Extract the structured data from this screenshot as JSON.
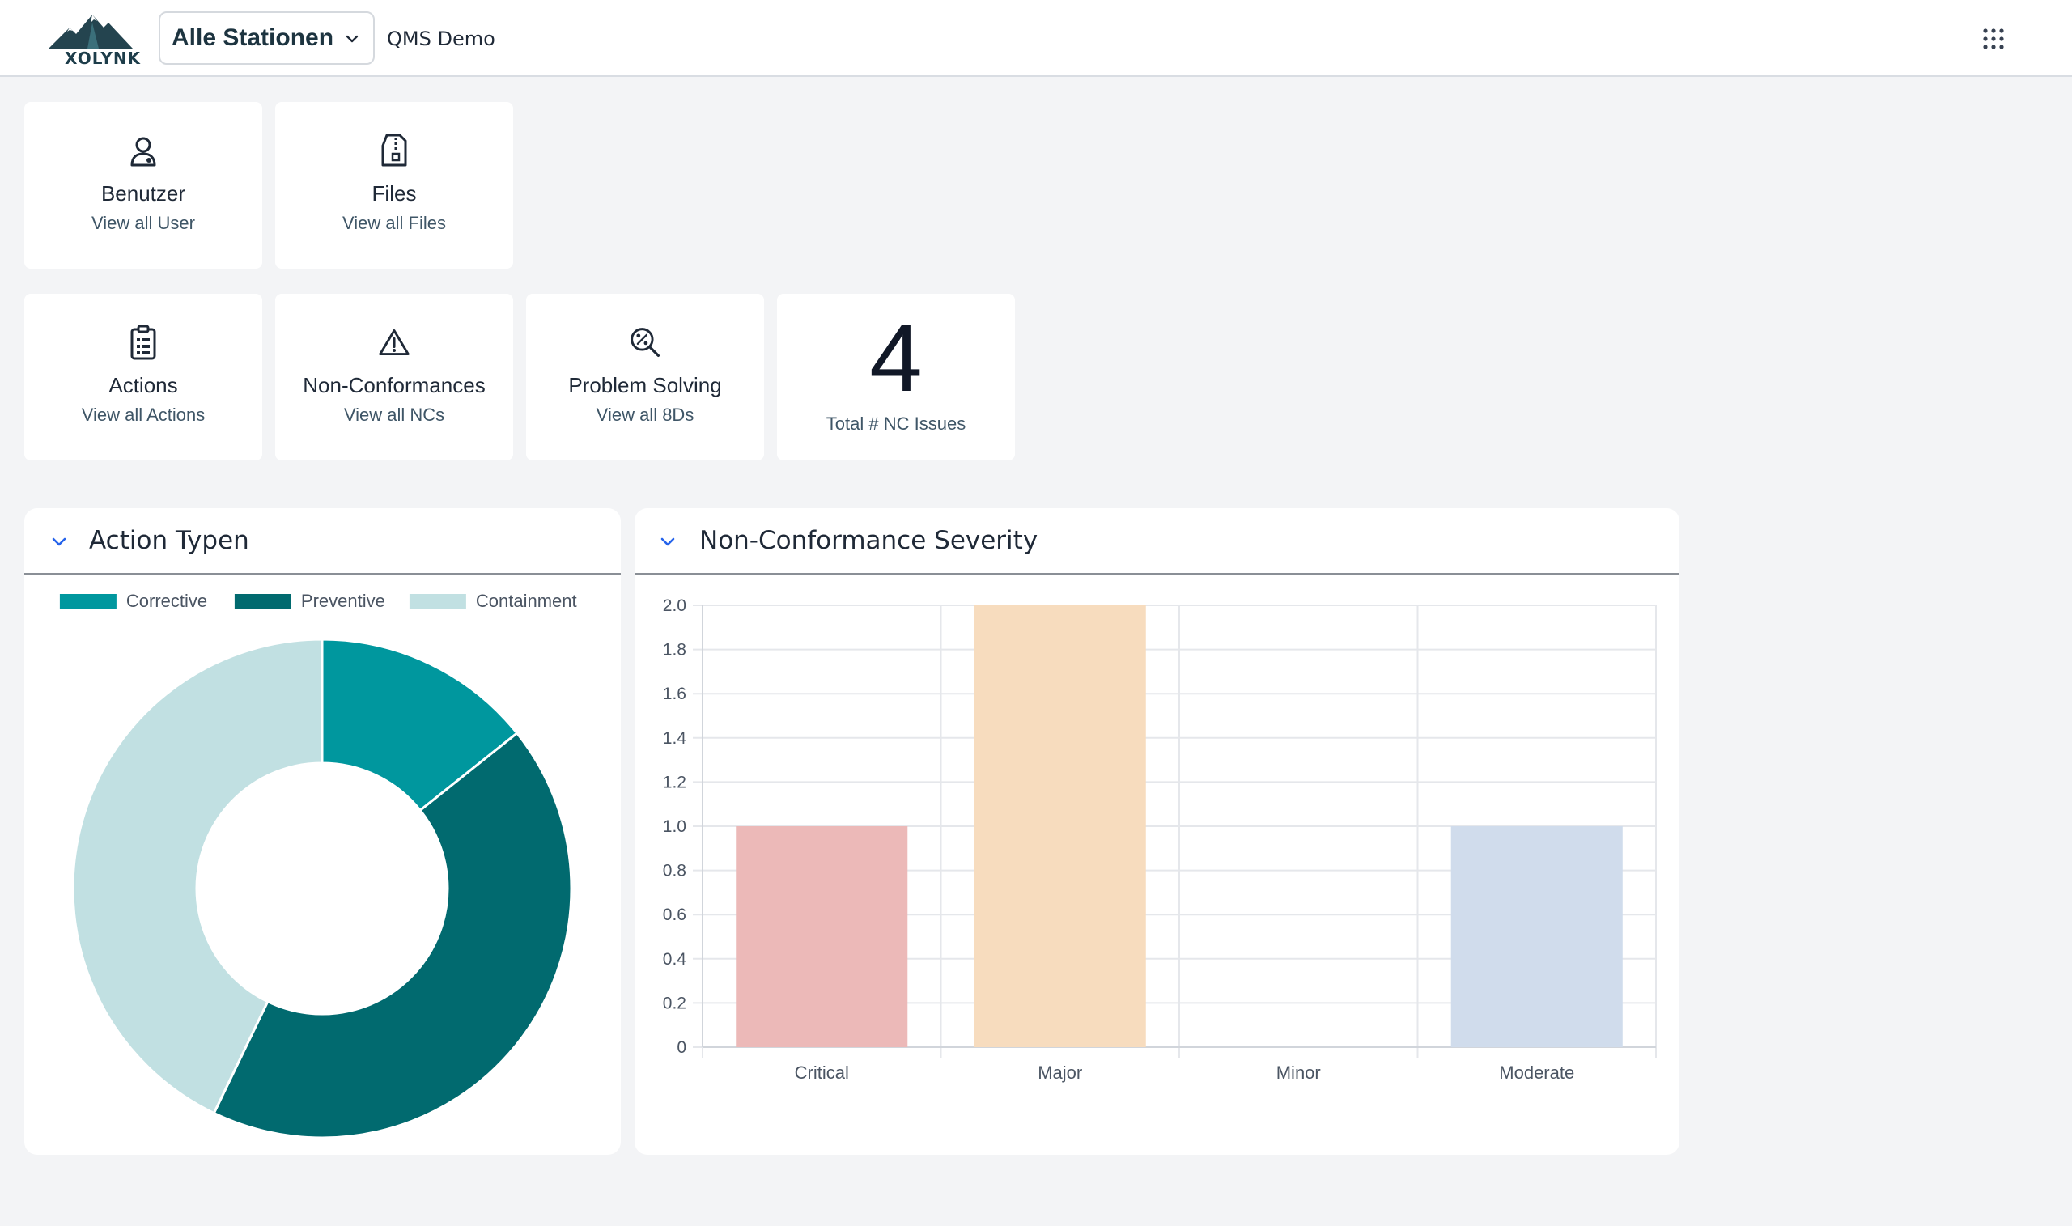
{
  "header": {
    "logo_text": "XOLYNK",
    "station_selector": "Alle Stationen",
    "org_name": "QMS Demo",
    "icons": {
      "dropdown": "chevron-down-icon",
      "apps": "grid-menu-icon"
    }
  },
  "tiles": [
    {
      "title": "Benutzer",
      "subtitle": "View all User",
      "icon": "user-icon"
    },
    {
      "title": "Files",
      "subtitle": "View all Files",
      "icon": "file-icon"
    },
    {
      "title": "Actions",
      "subtitle": "View all Actions",
      "icon": "clipboard-icon"
    },
    {
      "title": "Non-Conformances",
      "subtitle": "View all NCs",
      "icon": "warning-icon"
    },
    {
      "title": "Problem Solving",
      "subtitle": "View all 8Ds",
      "icon": "percent-search-icon"
    }
  ],
  "kpi": {
    "value": "4",
    "label": "Total # NC Issues"
  },
  "cards": {
    "action_types": {
      "title": "Action Typen"
    },
    "nc_severity": {
      "title": "Non-Conformance Severity"
    }
  },
  "colors": {
    "corrective": "#00979e",
    "preventive": "#016a6f",
    "containment": "#c1e0e2",
    "critical": "#ecb9b8",
    "major": "#f7dcbe",
    "minor": "#cfe8e6",
    "moderate": "#d0dcec"
  },
  "chart_data": [
    {
      "type": "pie",
      "title": "",
      "legend_position": "top",
      "categories": [
        "Corrective",
        "Preventive",
        "Containment"
      ],
      "values": [
        1,
        3,
        3
      ]
    },
    {
      "type": "bar",
      "title": "",
      "categories": [
        "Critical",
        "Major",
        "Minor",
        "Moderate"
      ],
      "values": [
        1,
        2,
        0,
        1
      ],
      "ylim": [
        0,
        2
      ],
      "yticks": [
        "0",
        "0.2",
        "0.4",
        "0.6",
        "0.8",
        "1.0",
        "1.2",
        "1.4",
        "1.6",
        "1.8",
        "2.0"
      ],
      "grid": true
    }
  ]
}
